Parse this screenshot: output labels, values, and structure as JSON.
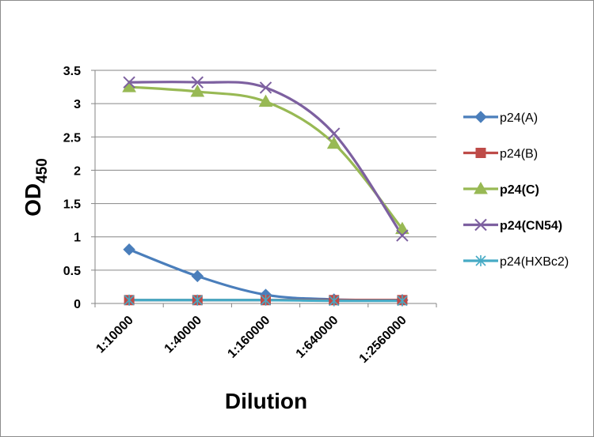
{
  "chart_data": {
    "type": "line",
    "categories": [
      "1:10000",
      "1:40000",
      "1:160000",
      "1:640000",
      "1:2560000"
    ],
    "series": [
      {
        "name": "p24(A)",
        "values": [
          0.81,
          0.41,
          0.13,
          0.06,
          0.05
        ],
        "color": "#4a7ebb",
        "marker": "diamond",
        "legend_bold": false
      },
      {
        "name": "p24(B)",
        "values": [
          0.05,
          0.05,
          0.05,
          0.05,
          0.05
        ],
        "color": "#be4b48",
        "marker": "square",
        "legend_bold": false
      },
      {
        "name": "p24(C)",
        "values": [
          3.25,
          3.18,
          3.03,
          2.4,
          1.12
        ],
        "color": "#98b954",
        "marker": "triangle",
        "legend_bold": true
      },
      {
        "name": "p24(CN54)",
        "values": [
          3.32,
          3.32,
          3.24,
          2.55,
          1.02
        ],
        "color": "#7d60a0",
        "marker": "x",
        "legend_bold": true
      },
      {
        "name": "p24(HXBc2)",
        "values": [
          0.05,
          0.05,
          0.05,
          0.04,
          0.04
        ],
        "color": "#46aac5",
        "marker": "asterisk",
        "legend_bold": false
      }
    ],
    "ylim": [
      0,
      3.5
    ],
    "yticks": [
      "0",
      "0.5",
      "1",
      "1.5",
      "2",
      "2.5",
      "3",
      "3.5"
    ],
    "grid": true,
    "legend_position": "right",
    "xlabel": "Dilution",
    "ylabel": {
      "main": "OD",
      "subscript": "450"
    }
  }
}
